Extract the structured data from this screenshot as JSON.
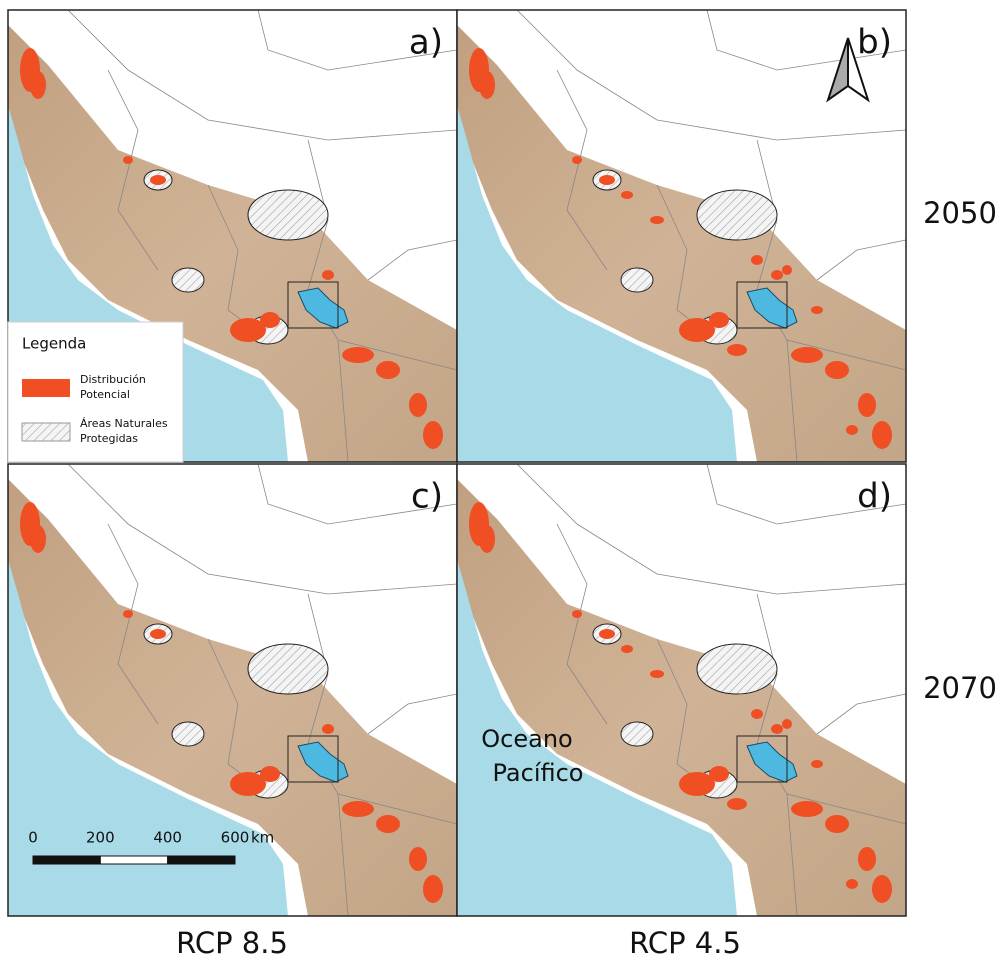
{
  "panels": [
    {
      "label": "a)"
    },
    {
      "label": "b)"
    },
    {
      "label": "c)"
    },
    {
      "label": "d)"
    }
  ],
  "row_labels": [
    "2050",
    "2070"
  ],
  "column_labels": [
    "RCP 8.5",
    "RCP 4.5"
  ],
  "legend": {
    "title": "Legenda",
    "items": [
      [
        "Distribución",
        "Potencial"
      ],
      [
        "Áreas Naturales",
        "Protegidas"
      ]
    ]
  },
  "ocean_label": [
    "Oceano",
    "Pacífico"
  ],
  "scale_bar": {
    "ticks": [
      0,
      200,
      400,
      600
    ],
    "unit": "km"
  }
}
